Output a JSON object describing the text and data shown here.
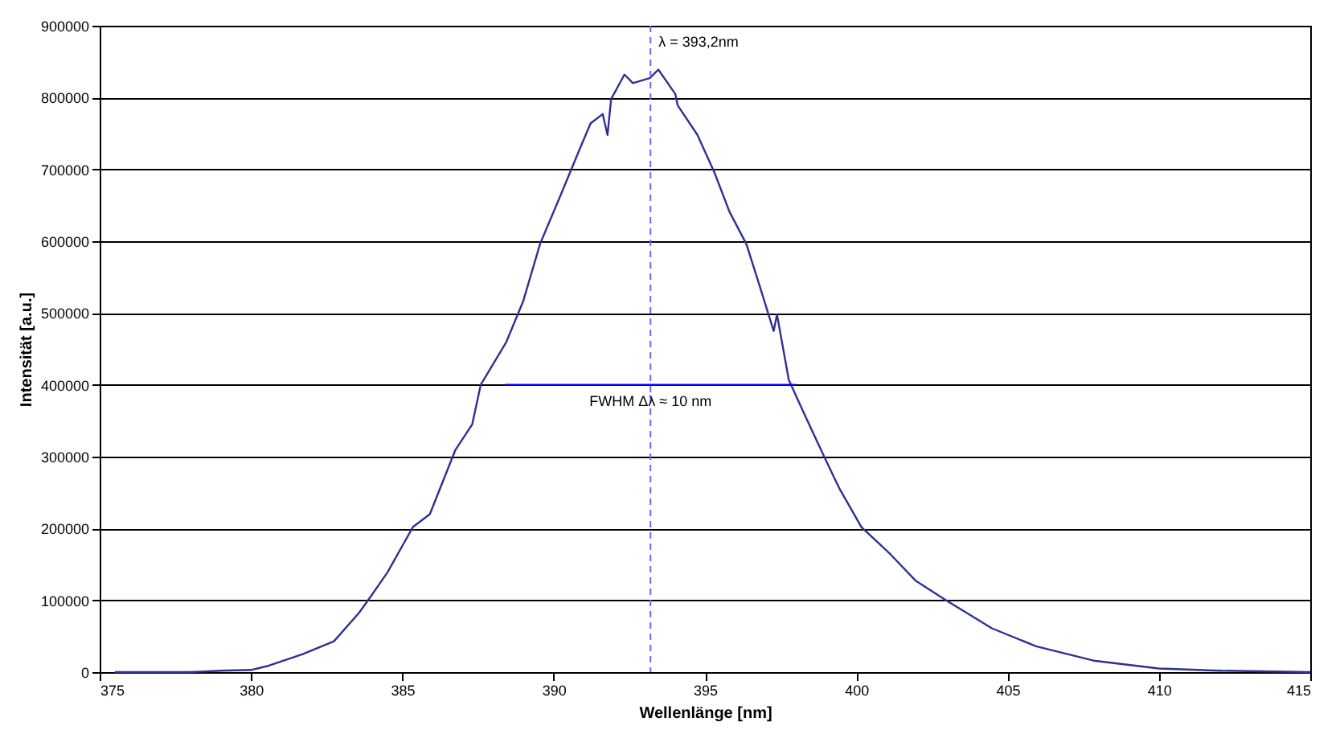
{
  "chart_data": {
    "type": "line",
    "xlabel": "Wellenlänge [nm]",
    "ylabel": "Intensität [a.u.]",
    "xlim": [
      375,
      415
    ],
    "xticks": [
      375,
      380,
      385,
      390,
      395,
      400,
      405,
      410,
      415
    ],
    "ylim": [
      0,
      900000
    ],
    "yticks": [
      0,
      100000,
      200000,
      300000,
      400000,
      500000,
      600000,
      700000,
      800000,
      900000
    ],
    "grid": "y",
    "marker": "none",
    "line_style": "solid",
    "series": [
      {
        "color": "#2e3192",
        "x": [
          375.5,
          377,
          378,
          379,
          380,
          380.59,
          381.71,
          382.74,
          383.56,
          383.95,
          384.51,
          385.35,
          385.91,
          386.75,
          387.31,
          387.59,
          388.43,
          388.99,
          389.55,
          390.27,
          390.83,
          391.22,
          391.62,
          391.78,
          391.9,
          392.34,
          392.62,
          393.18,
          393.46,
          394.02,
          394.1,
          394.75,
          395.31,
          395.81,
          396.37,
          396.82,
          397.27,
          397.38,
          397.77,
          398.33,
          398.94,
          399.45,
          400.17,
          401.13,
          401.97,
          402.97,
          404.48,
          405.94,
          407.84,
          410,
          412,
          415
        ],
        "values": [
          0,
          0,
          0,
          2000,
          3000,
          9000,
          25000,
          43000,
          82000,
          105000,
          139000,
          202000,
          220000,
          309000,
          345000,
          400000,
          459000,
          516000,
          596000,
          668000,
          725000,
          764000,
          777000,
          748000,
          798000,
          832000,
          820000,
          827000,
          839000,
          805000,
          789000,
          748000,
          696000,
          641000,
          596000,
          536000,
          475000,
          498000,
          407000,
          355000,
          300000,
          255000,
          202000,
          164000,
          127000,
          100000,
          61000,
          36000,
          16000,
          5000,
          2000,
          0
        ]
      },
      {
        "type": "line",
        "color": "#0000ff",
        "x": [
          388.4,
          398
        ],
        "values": [
          400000,
          400000
        ]
      }
    ],
    "ref_lines": [
      {
        "axis": "x",
        "value": 393.2,
        "label": "λ = 393,2nm",
        "color": "#6666ff",
        "line_style": "dashed"
      }
    ],
    "annotations": [
      {
        "text": "FWHM Δλ ≈ 10 nm",
        "x": 393.2,
        "y": 400000
      }
    ]
  }
}
